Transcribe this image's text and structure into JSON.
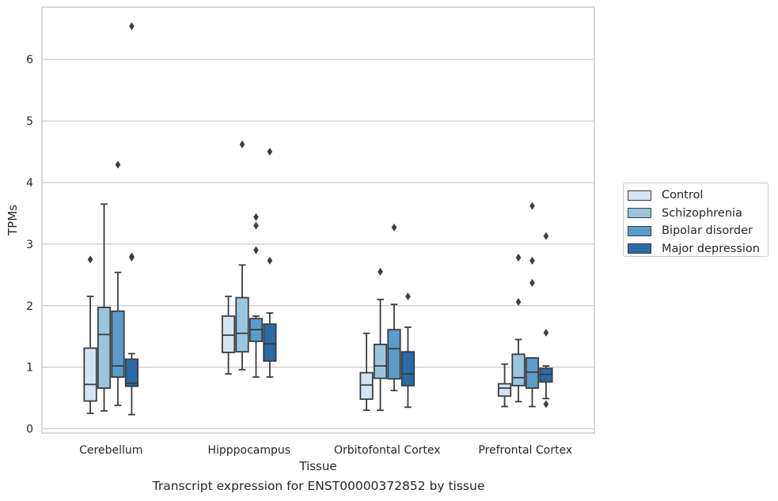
{
  "chart_data": {
    "type": "boxplot",
    "title": "",
    "caption": "Transcript expression for ENST00000372852 by tissue",
    "xlabel": "Tissue",
    "ylabel": "TPMs",
    "ylim": [
      -0.07,
      6.85
    ],
    "yticks": [
      0,
      1,
      2,
      3,
      4,
      5,
      6
    ],
    "grid": "horizontal",
    "legend_position": "outside-right",
    "categories": [
      "Cerebellum",
      "Hipppocampus",
      "Orbitofontal Cortex",
      "Prefrontal Cortex"
    ],
    "series": [
      {
        "name": "Control",
        "color": "#d4e4f3",
        "boxes": [
          {
            "whisker_low": 0.25,
            "q1": 0.45,
            "median": 0.72,
            "q3": 1.31,
            "whisker_high": 2.15,
            "outliers": [
              2.75
            ]
          },
          {
            "whisker_low": 0.89,
            "q1": 1.24,
            "median": 1.52,
            "q3": 1.83,
            "whisker_high": 2.15,
            "outliers": []
          },
          {
            "whisker_low": 0.3,
            "q1": 0.48,
            "median": 0.71,
            "q3": 0.91,
            "whisker_high": 1.55,
            "outliers": []
          },
          {
            "whisker_low": 0.36,
            "q1": 0.53,
            "median": 0.66,
            "q3": 0.73,
            "whisker_high": 1.05,
            "outliers": []
          }
        ]
      },
      {
        "name": "Schizophrenia",
        "color": "#9ac5df",
        "boxes": [
          {
            "whisker_low": 0.29,
            "q1": 0.66,
            "median": 1.53,
            "q3": 1.97,
            "whisker_high": 3.65,
            "outliers": []
          },
          {
            "whisker_low": 0.96,
            "q1": 1.25,
            "median": 1.55,
            "q3": 2.13,
            "whisker_high": 2.66,
            "outliers": [
              4.62
            ]
          },
          {
            "whisker_low": 0.3,
            "q1": 0.82,
            "median": 1.02,
            "q3": 1.37,
            "whisker_high": 2.1,
            "outliers": [
              2.55
            ]
          },
          {
            "whisker_low": 0.44,
            "q1": 0.7,
            "median": 0.83,
            "q3": 1.21,
            "whisker_high": 1.45,
            "outliers": [
              2.06,
              2.78
            ]
          }
        ]
      },
      {
        "name": "Bipolar disorder",
        "color": "#5a9ccc",
        "boxes": [
          {
            "whisker_low": 0.38,
            "q1": 0.84,
            "median": 1.02,
            "q3": 1.91,
            "whisker_high": 2.54,
            "outliers": [
              4.29
            ]
          },
          {
            "whisker_low": 0.84,
            "q1": 1.42,
            "median": 1.61,
            "q3": 1.79,
            "whisker_high": 1.83,
            "outliers": [
              2.9,
              3.3,
              3.44
            ]
          },
          {
            "whisker_low": 0.62,
            "q1": 0.81,
            "median": 1.3,
            "q3": 1.61,
            "whisker_high": 2.02,
            "outliers": [
              3.27
            ]
          },
          {
            "whisker_low": 0.36,
            "q1": 0.66,
            "median": 0.92,
            "q3": 1.15,
            "whisker_high": 1.15,
            "outliers": [
              2.37,
              2.73,
              3.62
            ]
          }
        ]
      },
      {
        "name": "Major depression",
        "color": "#2a6aa8",
        "boxes": [
          {
            "whisker_low": 0.23,
            "q1": 0.69,
            "median": 0.74,
            "q3": 1.13,
            "whisker_high": 1.22,
            "outliers": [
              2.78,
              2.8,
              6.54
            ]
          },
          {
            "whisker_low": 0.84,
            "q1": 1.1,
            "median": 1.38,
            "q3": 1.7,
            "whisker_high": 1.88,
            "outliers": [
              2.73,
              4.5
            ]
          },
          {
            "whisker_low": 0.35,
            "q1": 0.7,
            "median": 0.89,
            "q3": 1.25,
            "whisker_high": 1.65,
            "outliers": [
              2.15
            ]
          },
          {
            "whisker_low": 0.49,
            "q1": 0.76,
            "median": 0.88,
            "q3": 0.98,
            "whisker_high": 1.02,
            "outliers": [
              0.4,
              1.56,
              3.13
            ]
          }
        ]
      }
    ]
  }
}
